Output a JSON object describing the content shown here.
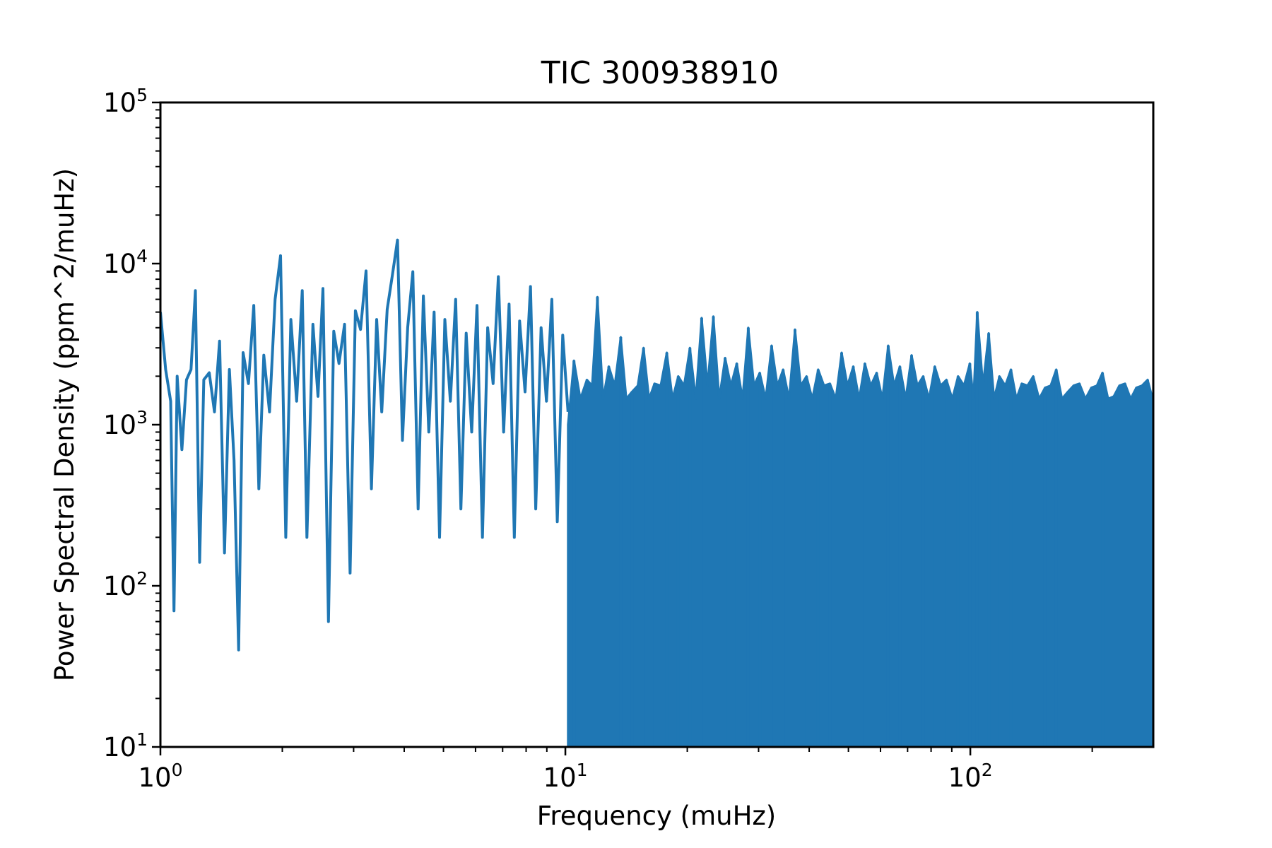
{
  "chart_data": {
    "type": "line",
    "title": "TIC 300938910",
    "xlabel": "Frequency (muHz)",
    "ylabel": "Power Spectral Density (ppm^2/muHz)",
    "x_scale": "log",
    "y_scale": "log",
    "xlim": [
      1,
      283
    ],
    "ylim": [
      10,
      100000
    ],
    "grid": false,
    "line_color": "#1f77b4",
    "x_ticks": [
      {
        "value": 1,
        "base": "10",
        "exp": "0"
      },
      {
        "value": 10,
        "base": "10",
        "exp": "1"
      },
      {
        "value": 100,
        "base": "10",
        "exp": "2"
      }
    ],
    "y_ticks": [
      {
        "value": 10,
        "base": "10",
        "exp": "1"
      },
      {
        "value": 100,
        "base": "10",
        "exp": "2"
      },
      {
        "value": 1000,
        "base": "10",
        "exp": "3"
      },
      {
        "value": 10000,
        "base": "10",
        "exp": "4"
      },
      {
        "value": 100000,
        "base": "10",
        "exp": "5"
      }
    ],
    "series": [
      {
        "x": [
          1.0,
          1.03,
          1.06,
          1.08,
          1.1,
          1.13,
          1.16,
          1.19,
          1.22,
          1.25,
          1.28,
          1.32,
          1.36,
          1.4,
          1.44,
          1.48,
          1.52,
          1.56,
          1.6,
          1.65,
          1.7,
          1.75,
          1.8,
          1.86,
          1.92,
          1.98,
          2.04,
          2.1,
          2.17,
          2.24,
          2.3,
          2.38,
          2.45,
          2.52,
          2.6,
          2.68,
          2.76,
          2.85,
          2.94,
          3.03,
          3.12,
          3.22,
          3.32,
          3.42,
          3.52,
          3.63,
          3.74,
          3.85,
          3.96,
          4.08,
          4.2,
          4.33,
          4.46,
          4.6,
          4.74,
          4.89,
          5.04,
          5.2,
          5.36,
          5.52,
          5.69,
          5.87,
          6.05,
          6.24,
          6.43,
          6.63,
          6.83,
          7.04,
          7.26,
          7.48,
          7.71,
          7.95,
          8.2,
          8.45,
          8.71,
          8.98,
          9.26,
          9.55,
          9.85,
          10.15
        ],
        "y": [
          5000,
          2200,
          1400,
          70,
          2000,
          700,
          1900,
          2200,
          6800,
          140,
          1900,
          2100,
          1200,
          3300,
          160,
          2200,
          600,
          40,
          2800,
          1800,
          5500,
          400,
          2700,
          1200,
          6000,
          11200,
          200,
          4500,
          1400,
          6800,
          200,
          4200,
          1500,
          7000,
          60,
          3800,
          2400,
          4200,
          120,
          5100,
          3900,
          9000,
          400,
          4500,
          1200,
          5200,
          8500,
          14000,
          800,
          4000,
          8900,
          300,
          6300,
          900,
          5000,
          200,
          4500,
          1400,
          6000,
          300,
          3700,
          900,
          5500,
          200,
          4000,
          1800,
          8300,
          900,
          5600,
          200,
          4400,
          1600,
          7200,
          300,
          4000,
          1400,
          6000,
          250,
          3600,
          1200
        ]
      }
    ],
    "dense_region": {
      "x_start": 10.15,
      "x_end": 283,
      "peaks": [
        [
          10.5,
          2500
        ],
        [
          11.3,
          1900
        ],
        [
          12.0,
          6200
        ],
        [
          12.8,
          2300
        ],
        [
          13.7,
          3500
        ],
        [
          14.6,
          1600
        ],
        [
          15.6,
          3000
        ],
        [
          16.6,
          1800
        ],
        [
          17.8,
          2800
        ],
        [
          19.0,
          2000
        ],
        [
          20.3,
          3000
        ],
        [
          21.7,
          4600
        ],
        [
          23.2,
          4700
        ],
        [
          24.8,
          2600
        ],
        [
          26.5,
          2400
        ],
        [
          28.3,
          4000
        ],
        [
          30.2,
          2100
        ],
        [
          32.3,
          3100
        ],
        [
          34.5,
          2200
        ],
        [
          36.9,
          3900
        ],
        [
          39.4,
          2000
        ],
        [
          42.1,
          2200
        ],
        [
          45.0,
          1800
        ],
        [
          48.1,
          2800
        ],
        [
          51.4,
          2300
        ],
        [
          54.9,
          2400
        ],
        [
          58.7,
          2100
        ],
        [
          62.7,
          3100
        ],
        [
          67.0,
          2300
        ],
        [
          71.6,
          2700
        ],
        [
          76.5,
          2000
        ],
        [
          81.7,
          2300
        ],
        [
          87.3,
          1900
        ],
        [
          93.3,
          2000
        ],
        [
          99.7,
          2400
        ],
        [
          104.0,
          5000
        ],
        [
          111.0,
          3700
        ],
        [
          118.0,
          2000
        ],
        [
          126.0,
          2200
        ],
        [
          134.0,
          1800
        ],
        [
          143.0,
          2000
        ],
        [
          153.0,
          1700
        ],
        [
          163.0,
          2200
        ],
        [
          174.0,
          1600
        ],
        [
          186.0,
          1800
        ],
        [
          199.0,
          1700
        ],
        [
          212.0,
          2100
        ],
        [
          226.0,
          1500
        ],
        [
          241.0,
          1800
        ],
        [
          257.0,
          1700
        ],
        [
          274.0,
          1900
        ]
      ]
    }
  }
}
